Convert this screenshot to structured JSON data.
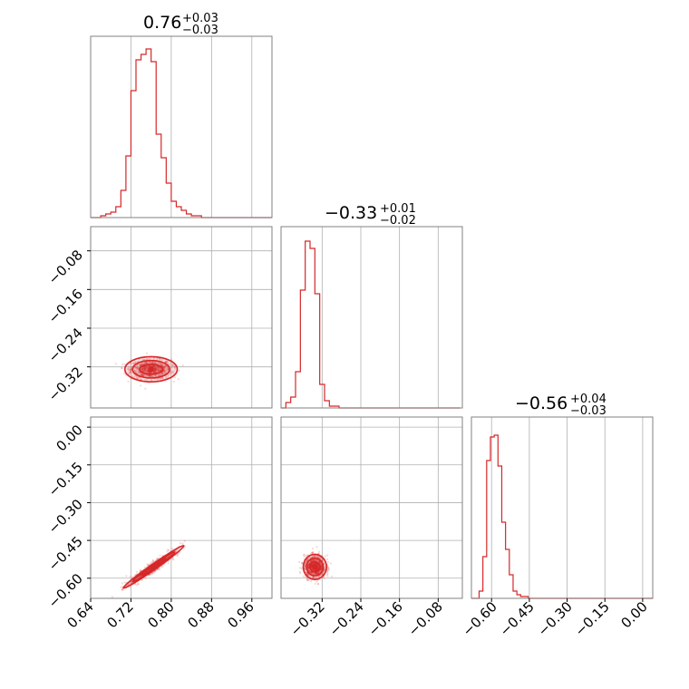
{
  "colors": {
    "accent": "#d62728",
    "grid": "#b0b0b0",
    "frame": "#808080"
  },
  "chart_data": [
    {
      "type": "histogram",
      "parameter_index": 0,
      "title": {
        "median": "0.76",
        "plus": "+0.03",
        "minus": "−0.03"
      },
      "xlim": [
        0.64,
        1.0
      ],
      "grid": true,
      "bins": [
        0.645,
        0.655,
        0.665,
        0.675,
        0.685,
        0.695,
        0.705,
        0.715,
        0.725,
        0.735,
        0.745,
        0.755,
        0.765,
        0.775,
        0.785,
        0.795,
        0.805,
        0.815,
        0.825,
        0.835,
        0.845,
        0.855,
        0.865,
        0.875,
        0.885,
        0.895,
        0.905,
        0.915,
        0.925,
        0.935,
        0.945,
        0.955,
        0.965,
        0.975,
        0.985,
        0.995
      ],
      "counts": [
        0,
        0,
        0.01,
        0.02,
        0.03,
        0.06,
        0.15,
        0.34,
        0.7,
        0.87,
        0.9,
        0.93,
        0.86,
        0.46,
        0.33,
        0.19,
        0.09,
        0.06,
        0.04,
        0.02,
        0.01,
        0.01,
        0,
        0,
        0,
        0,
        0,
        0,
        0,
        0,
        0,
        0,
        0,
        0,
        0,
        0
      ]
    },
    {
      "type": "histogram",
      "parameter_index": 1,
      "title": {
        "median": "−0.33",
        "plus": "+0.01",
        "minus": "−0.02"
      },
      "xlim": [
        -0.405,
        -0.03
      ],
      "xticks": [
        -0.32,
        -0.24,
        -0.16,
        -0.08
      ],
      "xtick_labels": [
        "−0.32",
        "−0.24",
        "−0.16",
        "−0.08"
      ],
      "grid": true,
      "bins": [
        -0.4,
        -0.39,
        -0.38,
        -0.37,
        -0.36,
        -0.35,
        -0.34,
        -0.33,
        -0.32,
        -0.31,
        -0.3,
        -0.29,
        -0.28,
        -0.27,
        -0.26,
        -0.25,
        -0.24,
        -0.23,
        -0.22,
        -0.21,
        -0.2,
        -0.19,
        -0.18,
        -0.17,
        -0.16,
        -0.15,
        -0.14,
        -0.13,
        -0.12,
        -0.11,
        -0.1,
        -0.09,
        -0.08,
        -0.07,
        -0.06,
        -0.05,
        -0.04
      ],
      "counts": [
        0,
        0.03,
        0.06,
        0.2,
        0.65,
        0.92,
        0.88,
        0.63,
        0.13,
        0.04,
        0.01,
        0.01,
        0,
        0,
        0,
        0,
        0,
        0,
        0,
        0,
        0,
        0,
        0,
        0,
        0,
        0,
        0,
        0,
        0,
        0,
        0,
        0,
        0,
        0,
        0,
        0,
        0
      ]
    },
    {
      "type": "histogram",
      "parameter_index": 2,
      "title": {
        "median": "−0.56",
        "plus": "+0.04",
        "minus": "−0.03"
      },
      "xlim": [
        -0.68,
        0.04
      ],
      "xticks": [
        -0.6,
        -0.45,
        -0.3,
        -0.15,
        0.0
      ],
      "xtick_labels": [
        "−0.60",
        "−0.45",
        "−0.30",
        "−0.15",
        "0.00"
      ],
      "grid": true,
      "bins": [
        -0.672,
        -0.657,
        -0.642,
        -0.627,
        -0.612,
        -0.597,
        -0.582,
        -0.567,
        -0.552,
        -0.537,
        -0.522,
        -0.507,
        -0.492,
        -0.477,
        -0.462,
        -0.447,
        -0.432,
        -0.417,
        -0.402,
        -0.387,
        -0.372,
        -0.357,
        -0.342,
        -0.327,
        -0.312,
        -0.297,
        -0.282,
        -0.267,
        -0.252,
        -0.237,
        -0.222,
        -0.207,
        -0.192,
        -0.177,
        -0.162,
        -0.147,
        -0.132,
        -0.117,
        -0.102,
        -0.087,
        -0.072,
        -0.057,
        -0.042,
        -0.027,
        -0.012,
        0.003,
        0.018,
        0.033
      ],
      "counts": [
        0,
        0,
        0.04,
        0.23,
        0.76,
        0.89,
        0.9,
        0.73,
        0.42,
        0.27,
        0.13,
        0.04,
        0.02,
        0.01,
        0.01,
        0,
        0,
        0,
        0,
        0,
        0,
        0,
        0,
        0,
        0,
        0,
        0,
        0,
        0,
        0,
        0,
        0,
        0,
        0,
        0,
        0,
        0,
        0,
        0,
        0,
        0,
        0,
        0,
        0,
        0,
        0,
        0,
        0
      ]
    },
    {
      "type": "scatter",
      "pair": [
        0,
        1
      ],
      "xlim": [
        0.64,
        1.0
      ],
      "ylim": [
        -0.405,
        -0.03
      ],
      "yticks": [
        -0.32,
        -0.24,
        -0.16,
        -0.08
      ],
      "ytick_labels": [
        "−0.32",
        "−0.24",
        "−0.16",
        "−0.08"
      ],
      "grid": true,
      "center": [
        0.76,
        -0.325
      ],
      "contour_rx": [
        0.052,
        0.037,
        0.023
      ],
      "contour_ry": [
        0.026,
        0.018,
        0.01
      ]
    },
    {
      "type": "scatter",
      "pair": [
        0,
        2
      ],
      "xlim": [
        0.64,
        1.0
      ],
      "ylim": [
        -0.68,
        0.04
      ],
      "xticks": [
        0.64,
        0.72,
        0.8,
        0.88,
        0.96
      ],
      "xtick_labels": [
        "0.64",
        "0.72",
        "0.80",
        "0.88",
        "0.96"
      ],
      "yticks": [
        -0.6,
        -0.45,
        -0.3,
        -0.15,
        0.0
      ],
      "ytick_labels": [
        "−0.60",
        "−0.45",
        "−0.30",
        "−0.15",
        "0.00"
      ],
      "grid": true,
      "center": [
        0.765,
        -0.555
      ],
      "slope": 1.4,
      "contour_major": [
        0.06,
        0.042,
        0.024
      ],
      "contour_minor": [
        0.011,
        0.008,
        0.005
      ]
    },
    {
      "type": "scatter",
      "pair": [
        1,
        2
      ],
      "xlim": [
        -0.405,
        -0.03
      ],
      "ylim": [
        -0.68,
        0.04
      ],
      "grid": true,
      "center": [
        -0.335,
        -0.555
      ],
      "contour_rx": [
        0.024,
        0.017,
        0.01
      ],
      "contour_ry": [
        0.05,
        0.035,
        0.02
      ]
    }
  ]
}
